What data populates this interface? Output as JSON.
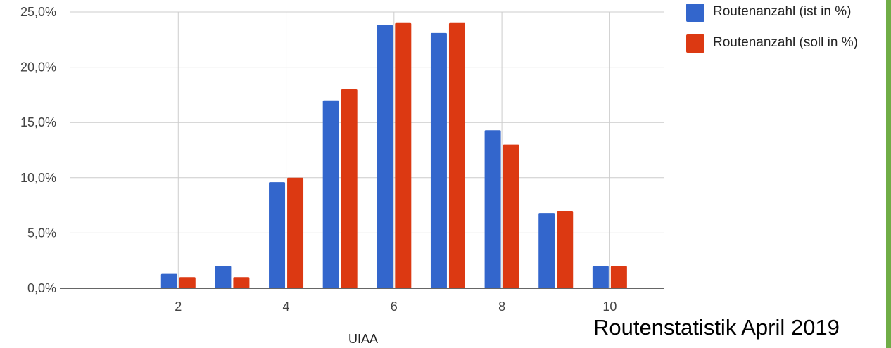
{
  "chart_data": {
    "type": "bar",
    "categories": [
      2,
      3,
      4,
      5,
      6,
      7,
      8,
      9,
      10
    ],
    "x_tick_labels": [
      "2",
      "4",
      "6",
      "8",
      "10"
    ],
    "xlim": [
      0,
      11
    ],
    "ylim": [
      0,
      25
    ],
    "y_tick_values": [
      0,
      5,
      10,
      15,
      20,
      25
    ],
    "y_tick_labels": [
      "0,0%",
      "5,0%",
      "10,0%",
      "15,0%",
      "20,0%",
      "25,0%"
    ],
    "xlabel": "UIAA",
    "ylabel": "",
    "grid": true,
    "legend_position": "top-right",
    "series": [
      {
        "name": "Routenanzahl (ist in %)",
        "color": "#3366cc",
        "values": [
          1.3,
          2.0,
          9.6,
          17.0,
          23.8,
          23.1,
          14.3,
          6.8,
          2.0
        ]
      },
      {
        "name": "Routenanzahl (soll in %)",
        "color": "#dc3912",
        "values": [
          1.0,
          1.0,
          10.0,
          18.0,
          24.0,
          24.0,
          13.0,
          7.0,
          2.0
        ]
      }
    ]
  },
  "caption": "Routenstatistik April 2019",
  "border_color": "#70ad47"
}
